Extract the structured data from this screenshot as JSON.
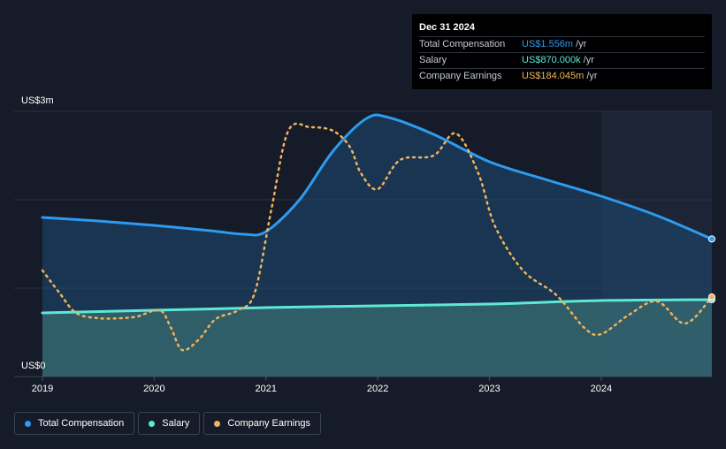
{
  "tooltip": {
    "date": "Dec 31 2024",
    "rows": [
      {
        "label": "Total Compensation",
        "value": "US$1.556m",
        "unit": "/yr",
        "color": "#2d9bf0"
      },
      {
        "label": "Salary",
        "value": "US$870.000k",
        "unit": "/yr",
        "color": "#5ee8d6"
      },
      {
        "label": "Company Earnings",
        "value": "US$184.045m",
        "unit": "/yr",
        "color": "#f0b35c"
      }
    ]
  },
  "legend": [
    {
      "label": "Total Compensation",
      "color": "#2d9bf0"
    },
    {
      "label": "Salary",
      "color": "#5ee8d6"
    },
    {
      "label": "Company Earnings",
      "color": "#f0b35c"
    }
  ],
  "chart_data": {
    "type": "line",
    "y_top_label": "US$3m",
    "y_bottom_label": "US$0",
    "ylim": [
      0,
      3.0
    ],
    "xlim": [
      2019.0,
      2024.99
    ],
    "x_ticks": [
      "2019",
      "2020",
      "2021",
      "2022",
      "2023",
      "2024"
    ],
    "x_tick_values": [
      2019,
      2020,
      2021,
      2022,
      2023,
      2024
    ],
    "gridlines": [
      1.0,
      2.0,
      3.0
    ],
    "highlight_from": 2024.0,
    "series": [
      {
        "name": "Total Compensation",
        "color": "#2d9bf0",
        "x": [
          2019.0,
          2019.5,
          2020.0,
          2020.5,
          2020.8,
          2021.0,
          2021.3,
          2021.6,
          2021.9,
          2022.1,
          2022.5,
          2023.0,
          2023.5,
          2024.0,
          2024.5,
          2024.99
        ],
        "y": [
          1.8,
          1.76,
          1.71,
          1.65,
          1.61,
          1.64,
          2.0,
          2.55,
          2.92,
          2.93,
          2.74,
          2.43,
          2.23,
          2.04,
          1.82,
          1.556
        ]
      },
      {
        "name": "Salary",
        "color": "#5ee8d6",
        "x": [
          2019.0,
          2020.0,
          2021.0,
          2022.0,
          2023.0,
          2024.0,
          2024.99
        ],
        "y": [
          0.72,
          0.75,
          0.78,
          0.8,
          0.82,
          0.86,
          0.87
        ]
      },
      {
        "name": "Company Earnings",
        "color": "#f0b35c",
        "dashed": true,
        "x": [
          2019.0,
          2019.15,
          2019.3,
          2019.5,
          2019.7,
          2019.85,
          2020.05,
          2020.15,
          2020.25,
          2020.4,
          2020.55,
          2020.75,
          2020.9,
          2021.05,
          2021.2,
          2021.4,
          2021.6,
          2021.75,
          2021.85,
          2022.0,
          2022.2,
          2022.5,
          2022.7,
          2022.9,
          2023.05,
          2023.3,
          2023.6,
          2023.85,
          2024.0,
          2024.25,
          2024.5,
          2024.75,
          2024.99
        ],
        "y": [
          1.2,
          0.95,
          0.72,
          0.66,
          0.66,
          0.68,
          0.75,
          0.55,
          0.3,
          0.42,
          0.65,
          0.75,
          0.95,
          1.9,
          2.78,
          2.82,
          2.78,
          2.6,
          2.3,
          2.12,
          2.45,
          2.5,
          2.75,
          2.3,
          1.7,
          1.2,
          0.92,
          0.55,
          0.48,
          0.7,
          0.85,
          0.6,
          0.9
        ]
      }
    ]
  }
}
